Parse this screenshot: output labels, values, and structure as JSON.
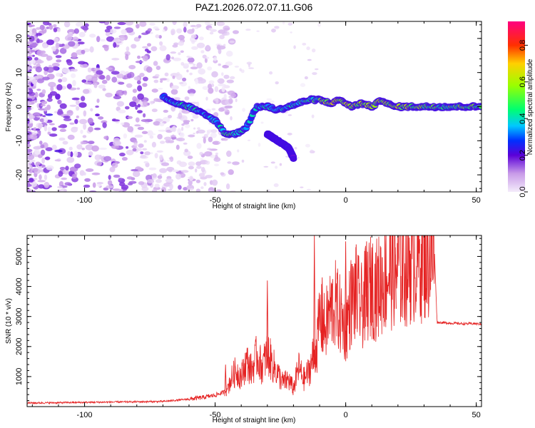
{
  "title": "PAZ1.2026.072.07.11.G06",
  "colors": {
    "snr_line": "#e52222",
    "axes": "#000000",
    "background": "#ffffff"
  },
  "chart_data": [
    {
      "type": "heatmap",
      "name": "spectrogram",
      "xlabel": "Height of straight line (km)",
      "ylabel": "Frequency (Hz)",
      "xlim": [
        -122,
        52
      ],
      "ylim": [
        -25,
        25
      ],
      "xticks": [
        -100,
        -50,
        0,
        50
      ],
      "yticks": [
        -20,
        -10,
        0,
        10,
        20
      ],
      "xtick_labels": [
        "-100",
        "-50",
        "0",
        "50"
      ],
      "ytick_labels": [
        "-20",
        "-10",
        "0",
        "10",
        "20"
      ],
      "colorbar": {
        "label": "Normalized spectral amplitude",
        "range": [
          0.0,
          0.93
        ],
        "ticks": [
          0.0,
          0.2,
          0.4,
          0.6,
          0.8
        ],
        "tick_labels": [
          "0.0",
          "0.2",
          "0.4",
          "0.6",
          "0.8"
        ],
        "stops": [
          {
            "v": 0.0,
            "color": "#f4ecfb"
          },
          {
            "v": 0.1,
            "color": "#c89ae8"
          },
          {
            "v": 0.2,
            "color": "#5b00d8"
          },
          {
            "v": 0.28,
            "color": "#0030ff"
          },
          {
            "v": 0.36,
            "color": "#00c8ff"
          },
          {
            "v": 0.45,
            "color": "#00ff70"
          },
          {
            "v": 0.58,
            "color": "#9aff00"
          },
          {
            "v": 0.7,
            "color": "#ffd000"
          },
          {
            "v": 0.8,
            "color": "#ff3000"
          },
          {
            "v": 0.93,
            "color": "#ff0080"
          }
        ]
      },
      "ridge": {
        "description_points_x_km": [
          -70,
          -65,
          -60,
          -55,
          -50,
          -46,
          -42,
          -38,
          -34,
          -30,
          -26,
          -22,
          -18,
          -14,
          -10,
          -6,
          -2,
          2,
          6,
          10,
          14,
          18,
          22,
          26,
          30,
          40,
          52
        ],
        "frequency_hz": [
          3,
          1,
          0,
          -2,
          -4,
          -8,
          -8,
          -6,
          0,
          0,
          -1,
          0,
          1,
          2,
          2,
          1,
          2,
          0,
          1,
          0,
          2,
          0,
          0,
          0,
          0,
          0,
          0
        ],
        "amplitude": [
          0.3,
          0.35,
          0.4,
          0.35,
          0.35,
          0.45,
          0.4,
          0.35,
          0.35,
          0.4,
          0.4,
          0.38,
          0.4,
          0.4,
          0.5,
          0.6,
          0.55,
          0.6,
          0.55,
          0.55,
          0.6,
          0.55,
          0.6,
          0.55,
          0.5,
          0.5,
          0.5
        ]
      },
      "branch": {
        "x_km": [
          -30,
          -26,
          -22,
          -20
        ],
        "frequency_hz": [
          -8,
          -10,
          -12,
          -15
        ],
        "amplitude": [
          0.3,
          0.35,
          0.3,
          0.2
        ]
      }
    },
    {
      "type": "line",
      "name": "snr",
      "xlabel": "Height of straight line (km)",
      "ylabel": "SNR (10 * v/v)",
      "xlim": [
        -122,
        52
      ],
      "ylim": [
        0,
        5700
      ],
      "xticks": [
        -100,
        -50,
        0,
        50
      ],
      "yticks": [
        1000,
        2000,
        3000,
        4000,
        5000
      ],
      "xtick_labels": [
        "-100",
        "-50",
        "0",
        "50"
      ],
      "ytick_labels": [
        "1000",
        "2000",
        "3000",
        "4000",
        "5000"
      ],
      "series": [
        {
          "name": "SNR",
          "x": [
            -122,
            -110,
            -100,
            -90,
            -80,
            -70,
            -60,
            -55,
            -50,
            -46,
            -44,
            -42,
            -40,
            -38,
            -36,
            -34,
            -32,
            -30,
            -28,
            -26,
            -24,
            -22,
            -20,
            -18,
            -16,
            -14,
            -12,
            -11,
            -10,
            -8,
            -6,
            -4,
            -2,
            0,
            2,
            4,
            6,
            8,
            10,
            12,
            14,
            16,
            18,
            20,
            22,
            24,
            26,
            28,
            30,
            32,
            34,
            35,
            36,
            40,
            45,
            50,
            52
          ],
          "values": [
            120,
            130,
            140,
            150,
            160,
            170,
            250,
            300,
            380,
            500,
            900,
            1200,
            1000,
            1500,
            1200,
            1700,
            1300,
            1800,
            1400,
            1100,
            800,
            900,
            600,
            1300,
            900,
            1200,
            1800,
            2000,
            3000,
            2600,
            3200,
            3400,
            3000,
            2600,
            3500,
            3700,
            3300,
            3800,
            4000,
            3900,
            4200,
            4400,
            4600,
            4700,
            4600,
            4800,
            4900,
            5000,
            5000,
            5050,
            5100,
            2800,
            2800,
            2780,
            2760,
            2760,
            2740
          ],
          "spikes": [
            {
              "x": -46,
              "y": 1400
            },
            {
              "x": -30,
              "y": 4200
            },
            {
              "x": -12,
              "y": 5700
            },
            {
              "x": -9,
              "y": 4300
            },
            {
              "x": 0,
              "y": 5500
            },
            {
              "x": 4,
              "y": 5400
            },
            {
              "x": 8,
              "y": 5500
            },
            {
              "x": 10,
              "y": 5300
            },
            {
              "x": 19,
              "y": 5300
            }
          ]
        }
      ]
    }
  ]
}
